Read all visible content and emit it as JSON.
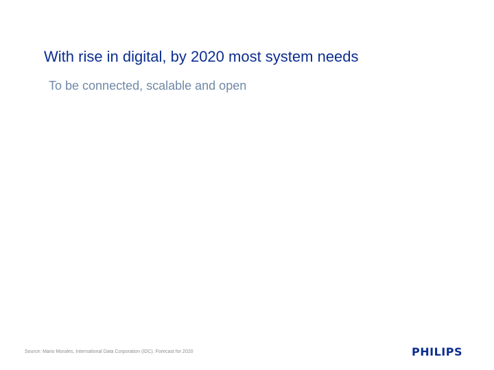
{
  "slide": {
    "title": "With rise in digital, by 2020 most system needs",
    "subtitle": "To be connected, scalable and open",
    "source": "Source: Mario Morales, International Data Corporation (IDC). Forecast for 2020",
    "logo": "PHILIPS"
  },
  "colors": {
    "title": "#0b2d8f",
    "subtitle": "#6f88a6",
    "source": "#8c8c8c",
    "logo": "#0b2d8f",
    "background": "#ffffff"
  }
}
